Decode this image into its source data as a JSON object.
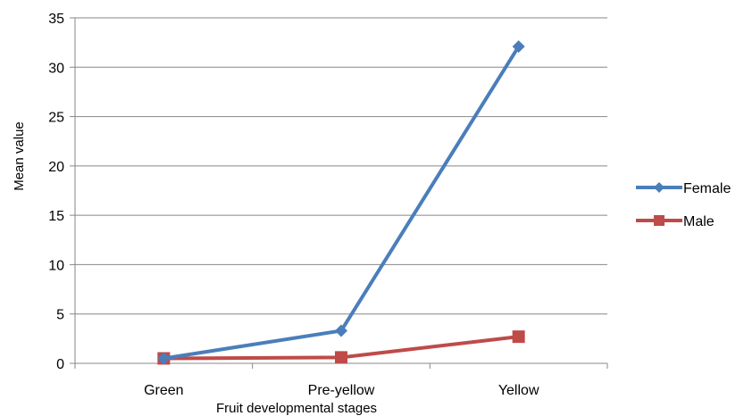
{
  "chart_data": {
    "type": "line",
    "title": "",
    "xlabel": "Fruit developmental stages",
    "ylabel": "Mean value",
    "categories": [
      "Green",
      "Pre-yellow",
      "Yellow"
    ],
    "ylim": [
      0,
      35
    ],
    "yticks": [
      0,
      5,
      10,
      15,
      20,
      25,
      30,
      35
    ],
    "grid": true,
    "legend_position": "right",
    "series": [
      {
        "name": "Female",
        "values": [
          0.5,
          3.3,
          32.1
        ],
        "color": "#4a7ebb",
        "marker": "diamond"
      },
      {
        "name": "Male",
        "values": [
          0.5,
          0.6,
          2.7
        ],
        "color": "#be4b48",
        "marker": "square"
      }
    ]
  }
}
